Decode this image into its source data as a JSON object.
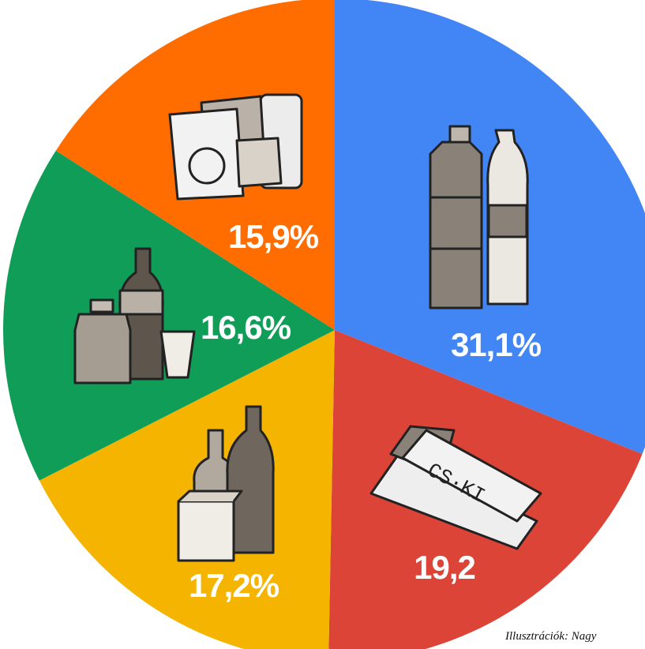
{
  "chart_data": {
    "type": "pie",
    "slices": [
      {
        "label": "31,1%",
        "value": 31.1,
        "color": "#4285F4",
        "icon": "drink-bottles-icon"
      },
      {
        "label": "19,2",
        "value": 19.2,
        "color": "#DB4437",
        "icon": "chocolate-bars-icon"
      },
      {
        "label": "17,2%",
        "value": 17.2,
        "color": "#F4B400",
        "icon": "alcohol-bottles-icon"
      },
      {
        "label": "16,6%",
        "value": 16.6,
        "color": "#0F9D58",
        "icon": "soda-bottles-icon"
      },
      {
        "label": "15,9%",
        "value": 15.9,
        "color": "#FF6D00",
        "icon": "chips-bags-icon"
      }
    ]
  },
  "credit": "Illusztrációk: Nagy"
}
